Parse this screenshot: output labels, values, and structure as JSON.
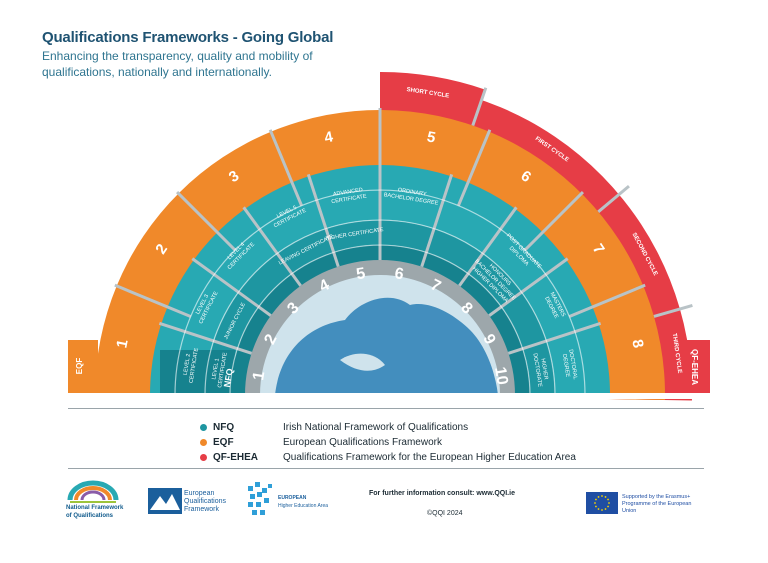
{
  "header": {
    "title": "Qualifications Frameworks - Going Global",
    "subtitle": "Enhancing the transparency, quality and mobility of qualifications, nationally and internationally."
  },
  "wheel": {
    "nfq_levels": [
      "1",
      "2",
      "3",
      "4",
      "5",
      "6",
      "7",
      "8",
      "9",
      "10"
    ],
    "nfq_label": "NFQ",
    "awards": [
      {
        "lines": [
          "LEVEL 1",
          "CERTIFICATE"
        ]
      },
      {
        "lines": [
          "JUNIOR CYCLE"
        ]
      },
      {
        "lines": [
          "LEAVING CERTIFICATE"
        ]
      },
      {
        "lines": [
          "HIGHER CERTIFICATE"
        ]
      },
      {
        "lines": [
          "HONOURS",
          "BACHELOR DEGREE",
          "HIGHER DIPLOMA"
        ]
      },
      {
        "lines": [
          "HIGHER",
          "DOCTORATE"
        ]
      }
    ],
    "awards_outer": [
      {
        "lines": [
          "LEVEL 2",
          "CERTIFICATE"
        ]
      },
      {
        "lines": [
          "LEVEL 3",
          "CERTIFICATE"
        ]
      },
      {
        "lines": [
          "LEVEL 4",
          "CERTIFICATE"
        ]
      },
      {
        "lines": [
          "LEVEL 5",
          "CERTIFICATE"
        ]
      },
      {
        "lines": [
          "ADVANCED",
          "CERTIFICATE"
        ]
      },
      {
        "lines": [
          "ORDINARY",
          "BACHELOR DEGREE"
        ]
      },
      {
        "lines": [
          "POST GRADUATE",
          "DIPLOMA"
        ]
      },
      {
        "lines": [
          "MASTERS",
          "DEGREE"
        ]
      },
      {
        "lines": [
          "DOCTORAL",
          "DEGREE"
        ]
      }
    ],
    "eqf_levels": [
      "1",
      "2",
      "3",
      "4",
      "5",
      "6",
      "7",
      "8"
    ],
    "eqf_label": "EQF",
    "cycles": [
      "SHORT CYCLE",
      "FIRST CYCLE",
      "SECOND CYCLE",
      "THIRD CYCLE"
    ],
    "qfehea_label": "QF-EHEA",
    "colors": {
      "nfq_dark": "#16828e",
      "nfq_mid": "#1e96a1",
      "nfq_light": "#28a9b3",
      "eqf": "#f0892a",
      "qfehea": "#e63d46",
      "globe_ocean": "#cfe3ec",
      "globe_land": "#2a7fb6",
      "divider": "#b9c3c7"
    }
  },
  "legend": [
    {
      "abbr": "NFQ",
      "desc": "Irish National Framework of Qualifications",
      "color": "#1e96a1"
    },
    {
      "abbr": "EQF",
      "desc": "European Qualifications Framework",
      "color": "#f0892a"
    },
    {
      "abbr": "QF-EHEA",
      "desc": "Qualifications Framework for the European Higher Education Area",
      "color": "#e63d46"
    }
  ],
  "footer": {
    "nfq_logo_text": "National Framework of Qualifications",
    "eqf_logo_text": "European Qualifications Framework",
    "ehea_logo_title": "EUROPEAN",
    "ehea_logo_text": "Higher Education Area",
    "contact": "For further information consult: www.QQI.ie",
    "copyright": "©QQI 2024",
    "erasmus_text": "Supported by the Erasmus+ Programme of the European Union"
  }
}
